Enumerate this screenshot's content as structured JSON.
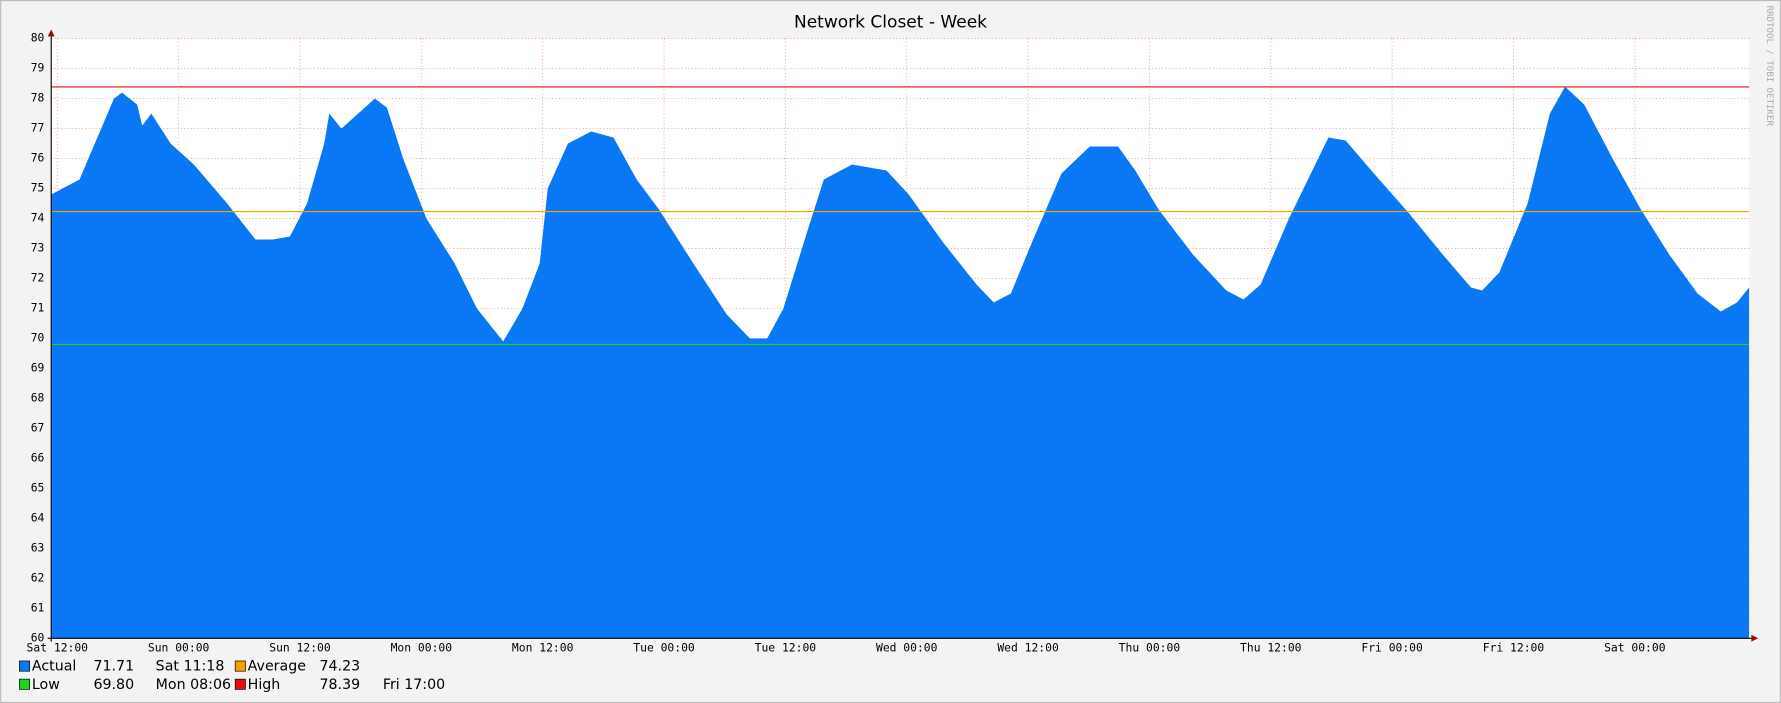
{
  "chart_data": {
    "type": "area",
    "title": "Network Closet - Week",
    "side_text": "RRDTOOL / TOBI OETIKER",
    "x": [
      -0.6,
      2.2,
      5.6,
      6.4,
      7.9,
      8.4,
      9.3,
      11.2,
      13.5,
      16.8,
      19.6,
      21.3,
      23.0,
      24.7,
      26.4,
      26.9,
      28.1,
      31.4,
      32.6,
      34.2,
      36.5,
      39.3,
      41.5,
      44.1,
      46.0,
      47.7,
      48.5,
      50.5,
      52.8,
      55.0,
      57.3,
      59.5,
      62.9,
      66.2,
      68.5,
      70.2,
      71.8,
      74.1,
      75.8,
      78.6,
      82.0,
      84.2,
      87.6,
      90.9,
      92.6,
      94.3,
      96.5,
      99.3,
      102.1,
      104.9,
      106.6,
      108.9,
      112.3,
      115.6,
      117.3,
      119.0,
      121.8,
      125.7,
      127.4,
      130.2,
      133.6,
      137.0,
      139.8,
      140.9,
      142.6,
      145.4,
      147.6,
      149.1,
      151.0,
      153.8,
      156.6,
      159.4,
      162.2,
      164.5,
      166.1,
      167.3
    ],
    "series": [
      {
        "name": "Actual",
        "color": "#0a78f5",
        "values": [
          74.8,
          75.3,
          78.0,
          78.2,
          77.8,
          77.1,
          77.5,
          76.5,
          75.8,
          74.5,
          73.3,
          73.3,
          73.4,
          74.5,
          76.5,
          77.5,
          77.0,
          78.0,
          77.7,
          76.0,
          74.0,
          72.5,
          71.0,
          69.9,
          71.0,
          72.5,
          75.0,
          76.5,
          76.9,
          76.7,
          75.3,
          74.3,
          72.5,
          70.8,
          70.0,
          70.0,
          71.0,
          73.5,
          75.3,
          75.8,
          75.6,
          74.8,
          73.2,
          71.8,
          71.2,
          71.5,
          73.3,
          75.5,
          76.4,
          76.4,
          75.6,
          74.3,
          72.8,
          71.6,
          71.3,
          71.8,
          74.0,
          76.7,
          76.6,
          75.5,
          74.2,
          72.8,
          71.7,
          71.6,
          72.2,
          74.5,
          77.5,
          78.4,
          77.8,
          76.0,
          74.3,
          72.8,
          71.5,
          70.9,
          71.2,
          71.7
        ]
      }
    ],
    "legend": [
      {
        "name": "Actual",
        "color": "#0a78f5",
        "value": 71.71,
        "time": "Sat 11:18"
      },
      {
        "name": "Average",
        "color": "#f5a000",
        "value": 74.23
      },
      {
        "name": "Low",
        "color": "#1ed41e",
        "value": {
          "value": 69.8,
          "label": "69.80"
        },
        "time": "Mon 08:06"
      },
      {
        "name": "High",
        "color": "#e01010",
        "value": 78.39,
        "time": "Fri 17:00"
      }
    ],
    "xlim": [
      -0.6,
      167.3
    ],
    "ylim": [
      60,
      80
    ],
    "xticks": [
      {
        "value": 0,
        "label": "Sat 12:00"
      },
      {
        "value": 12,
        "label": "Sun 00:00"
      },
      {
        "value": 24,
        "label": "Sun 12:00"
      },
      {
        "value": 36,
        "label": "Mon 00:00"
      },
      {
        "value": 48,
        "label": "Mon 12:00"
      },
      {
        "value": 60,
        "label": "Tue 00:00"
      },
      {
        "value": 72,
        "label": "Tue 12:00"
      },
      {
        "value": 84,
        "label": "Wed 00:00"
      },
      {
        "value": 96,
        "label": "Wed 12:00"
      },
      {
        "value": 108,
        "label": "Thu 00:00"
      },
      {
        "value": 120,
        "label": "Thu 12:00"
      },
      {
        "value": 132,
        "label": "Fri 00:00"
      },
      {
        "value": 144,
        "label": "Fri 12:00"
      },
      {
        "value": 156,
        "label": "Sat 00:00"
      }
    ],
    "yticks": [
      60,
      61,
      62,
      63,
      64,
      65,
      66,
      67,
      68,
      69,
      70,
      71,
      72,
      73,
      74,
      75,
      76,
      77,
      78,
      79,
      80
    ],
    "grid": true
  }
}
